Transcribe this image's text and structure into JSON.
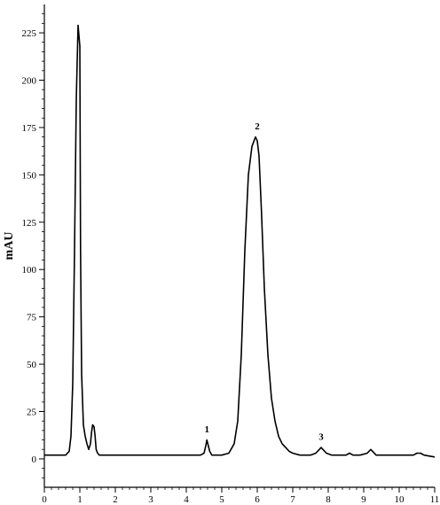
{
  "chart_data": {
    "type": "line",
    "title": "",
    "xlabel": "",
    "ylabel": "mAU",
    "xlim": [
      0,
      11
    ],
    "ylim": [
      -15,
      240
    ],
    "x_ticks": [
      "0",
      "1",
      "2",
      "3",
      "4",
      "5",
      "6",
      "7",
      "8",
      "9",
      "10",
      "11"
    ],
    "y_ticks": [
      "0",
      "25",
      "50",
      "75",
      "100",
      "125",
      "150",
      "175",
      "200",
      "225"
    ],
    "grid": false,
    "legend": "none",
    "line_color": "#000000",
    "series": [
      {
        "x": [
          0.0,
          0.6,
          0.7,
          0.75,
          0.8,
          0.85,
          0.9,
          0.95,
          1.0,
          1.02,
          1.05,
          1.1,
          1.15,
          1.2,
          1.25,
          1.3,
          1.33,
          1.36,
          1.4,
          1.43,
          1.46,
          1.5,
          1.55,
          1.7,
          2.0,
          3.0,
          4.0,
          4.4,
          4.5,
          4.55,
          4.58,
          4.62,
          4.66,
          4.72,
          4.8,
          5.0,
          5.2,
          5.35,
          5.45,
          5.55,
          5.65,
          5.75,
          5.85,
          5.95,
          6.0,
          6.05,
          6.12,
          6.2,
          6.3,
          6.4,
          6.5,
          6.6,
          6.7,
          6.8,
          6.9,
          7.0,
          7.2,
          7.5,
          7.65,
          7.75,
          7.8,
          7.85,
          7.95,
          8.1,
          8.3,
          8.5,
          8.6,
          8.7,
          8.9,
          9.1,
          9.2,
          9.25,
          9.35,
          9.5,
          10.0,
          10.4,
          10.5,
          10.6,
          10.7,
          11.0
        ],
        "values": [
          2,
          2,
          4,
          12,
          40,
          110,
          190,
          229,
          218,
          110,
          45,
          18,
          12,
          8,
          5,
          8,
          14,
          18,
          17,
          12,
          5,
          3,
          2,
          2,
          2,
          2,
          2,
          2,
          3,
          7,
          10,
          7,
          4,
          2,
          2,
          2,
          3,
          8,
          20,
          55,
          110,
          150,
          165,
          170,
          168,
          160,
          130,
          90,
          55,
          32,
          20,
          12,
          8,
          6,
          4,
          3,
          2,
          2,
          3,
          5,
          6,
          5,
          3,
          2,
          2,
          2,
          3,
          2,
          2,
          3,
          5,
          4,
          2,
          2,
          2,
          2,
          3,
          3,
          2,
          1
        ]
      }
    ],
    "annotations": [
      {
        "text": "1",
        "x": 4.58,
        "y": 14
      },
      {
        "text": "2",
        "x": 6.0,
        "y": 174
      },
      {
        "text": "3",
        "x": 7.8,
        "y": 10
      }
    ]
  }
}
